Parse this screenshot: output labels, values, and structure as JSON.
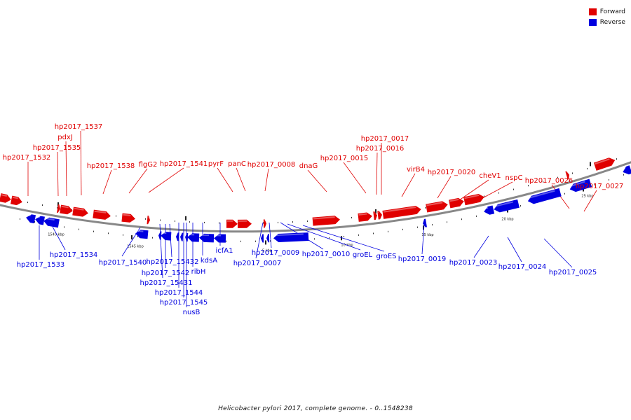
{
  "legend": {
    "forward_label": "Forward",
    "reverse_label": "Reverse",
    "forward_color": "#e00000",
    "reverse_color": "#0000e0"
  },
  "title": "Helicobacter pylori 2017, complete genome. - 0..1548238",
  "colors": {
    "forward": "#e00000",
    "reverse": "#0000e0",
    "backbone": "#888888"
  },
  "scale_labels": [
    "1540 kbp",
    "1545 kbp",
    "5 kbp",
    "10 kbp",
    "15 kbp",
    "20 kbp",
    "25 kbp"
  ],
  "forward_genes": [
    "hp2017_1537",
    "pdxJ",
    "hp2017_1535",
    "hp2017_1532",
    "hp2017_1538",
    "flgG2",
    "hp2017_1541",
    "pyrF",
    "panC",
    "hp2017_0008",
    "dnaG",
    "hp2017_0015",
    "hp2017_0017",
    "hp2017_0016",
    "virB4",
    "hp2017_0020",
    "cheV1",
    "nspC",
    "hp2017_0026",
    "hp2017_0027"
  ],
  "reverse_genes": [
    "hp2017_1534",
    "hp2017_1533",
    "hp2017_1540",
    "hp2017_15432",
    "hp2017_1542",
    "hp2017_15431",
    "hp2017_1544",
    "hp2017_1545",
    "nusB",
    "ribH",
    "kdsA",
    "icfA1",
    "hp2017_0009",
    "hp2017_0007",
    "hp2017_0010",
    "groEL",
    "groES",
    "hp2017_0019",
    "hp2017_0023",
    "hp2017_0024",
    "hp2017_0025"
  ]
}
